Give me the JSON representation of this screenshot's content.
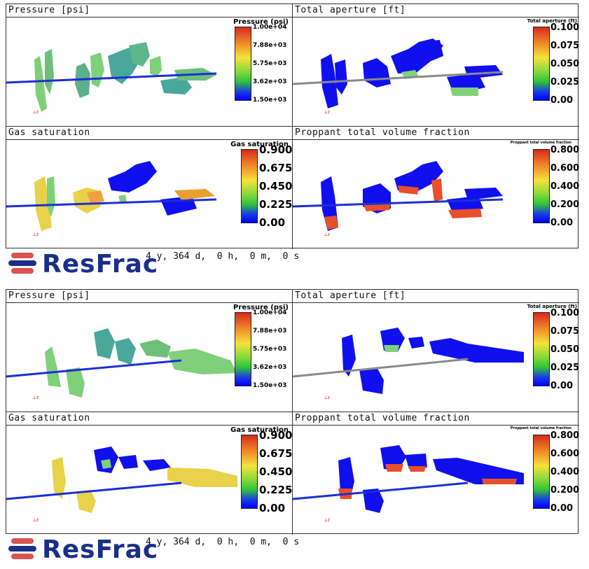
{
  "snapshots": [
    {
      "panels": [
        {
          "title": "Pressure [psi]",
          "legend_title": "Pressure (psi)",
          "ticks": [
            "1.00e+04",
            "7.88e+03",
            "5.75e+03",
            "3.62e+03",
            "1.50e+03"
          ],
          "tick_style": "small"
        },
        {
          "title": "Total aperture [ft]",
          "legend_title": "Total aperture (ft)",
          "ticks": [
            "0.100",
            "0.0750",
            "0.0500",
            "0.0250",
            "0.00"
          ],
          "tick_style": "medium"
        },
        {
          "title": "Gas saturation",
          "legend_title": "Gas saturation",
          "ticks": [
            "0.900",
            "0.675",
            "0.450",
            "0.225",
            "0.00"
          ],
          "tick_style": "large"
        },
        {
          "title": "Proppant total volume fraction",
          "legend_title": "Proppant total volume fraction",
          "ticks": [
            "0.800",
            "0.600",
            "0.400",
            "0.200",
            "0.00"
          ],
          "tick_style": "medium"
        }
      ],
      "brand": "ResFrac",
      "time": "4 y, 364 d,  0 h,  0 m,  0 s"
    },
    {
      "panels": [
        {
          "title": "Pressure [psi]",
          "legend_title": "Pressure (psi)",
          "ticks": [
            "1.00e+04",
            "7.88e+03",
            "5.75e+03",
            "3.62e+03",
            "1.50e+03"
          ],
          "tick_style": "small"
        },
        {
          "title": "Total aperture [ft]",
          "legend_title": "Total aperture (ft)",
          "ticks": [
            "0.100",
            "0.0750",
            "0.0500",
            "0.0250",
            "0.00"
          ],
          "tick_style": "medium"
        },
        {
          "title": "Gas saturation",
          "legend_title": "Gas saturation",
          "ticks": [
            "0.900",
            "0.675",
            "0.450",
            "0.225",
            "0.00"
          ],
          "tick_style": "large"
        },
        {
          "title": "Proppant total volume fraction",
          "legend_title": "Proppant total volume fraction",
          "ticks": [
            "0.800",
            "0.600",
            "0.400",
            "0.200",
            "0.00"
          ],
          "tick_style": "medium"
        }
      ],
      "brand": "ResFrac",
      "time": "4 y, 364 d,  0 h,  0 m,  0 s"
    }
  ],
  "colors": {
    "well_blue": "#1a2fd6",
    "well_gray": "#8a8a8a",
    "frac_blue": "#1010ee",
    "frac_green": "#7fd07a",
    "frac_orange": "#e8502a",
    "frac_yellow": "#e8d24a",
    "frac_teal": "#4aa89a",
    "logo_red": "#d9534f",
    "logo_blue": "#1a2f8a"
  }
}
